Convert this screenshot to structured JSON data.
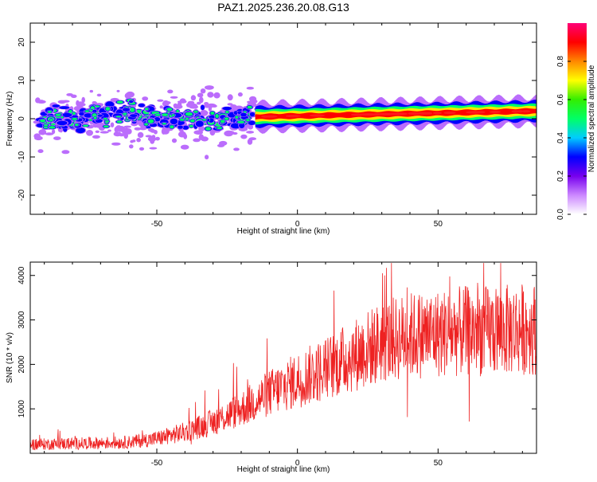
{
  "title": "PAZ1.2025.236.20.08.G13",
  "chart_data": [
    {
      "type": "heatmap",
      "xlabel": "Height of straight line (km)",
      "ylabel": "Frequency (Hz)",
      "xlim": [
        -95,
        85
      ],
      "ylim": [
        -25,
        25
      ],
      "xticks": [
        -50,
        0,
        50
      ],
      "yticks": [
        -20,
        -10,
        0,
        10,
        20
      ],
      "grid": false,
      "colorbar": {
        "label": "Normalized spectral amplitude",
        "range": [
          0,
          1
        ],
        "ticks": [
          "0.0",
          "0.2",
          "0.4",
          "0.6",
          "0.8"
        ],
        "colors": [
          "#ffffff",
          "#cc88ff",
          "#7700ee",
          "#0000ff",
          "#00ccff",
          "#00ff66",
          "#33ee00",
          "#ffff00",
          "#ff8800",
          "#ff0000",
          "#ff0077"
        ]
      },
      "features": [
        {
          "x_range": [
            -92,
            -17
          ],
          "freq_range": [
            -8,
            8
          ],
          "amplitude": "0.1-0.5",
          "note": "scattered blobs"
        },
        {
          "x_range": [
            -15,
            85
          ],
          "freq_center_start": 0.5,
          "freq_center_end": 2,
          "amplitude": "0.8-1.0",
          "note": "narrow band"
        }
      ]
    },
    {
      "type": "line",
      "xlabel": "Height of straight line (km)",
      "ylabel": "SNR (10 * v/v)",
      "xlim": [
        -95,
        85
      ],
      "ylim": [
        0,
        4300
      ],
      "xticks": [
        -50,
        0,
        50
      ],
      "yticks": [
        1000,
        2000,
        3000,
        4000
      ],
      "grid": false,
      "series": [
        {
          "color": "#ee2222",
          "x": [
            -95,
            -80,
            -70,
            -60,
            -50,
            -40,
            -30,
            -20,
            -10,
            0,
            10,
            20,
            30,
            40,
            50,
            60,
            70,
            80,
            85
          ],
          "values": [
            200,
            220,
            230,
            250,
            330,
            480,
            700,
            1000,
            1350,
            1650,
            1900,
            2200,
            2500,
            2650,
            2700,
            2750,
            2750,
            2800,
            2800
          ]
        }
      ]
    }
  ]
}
